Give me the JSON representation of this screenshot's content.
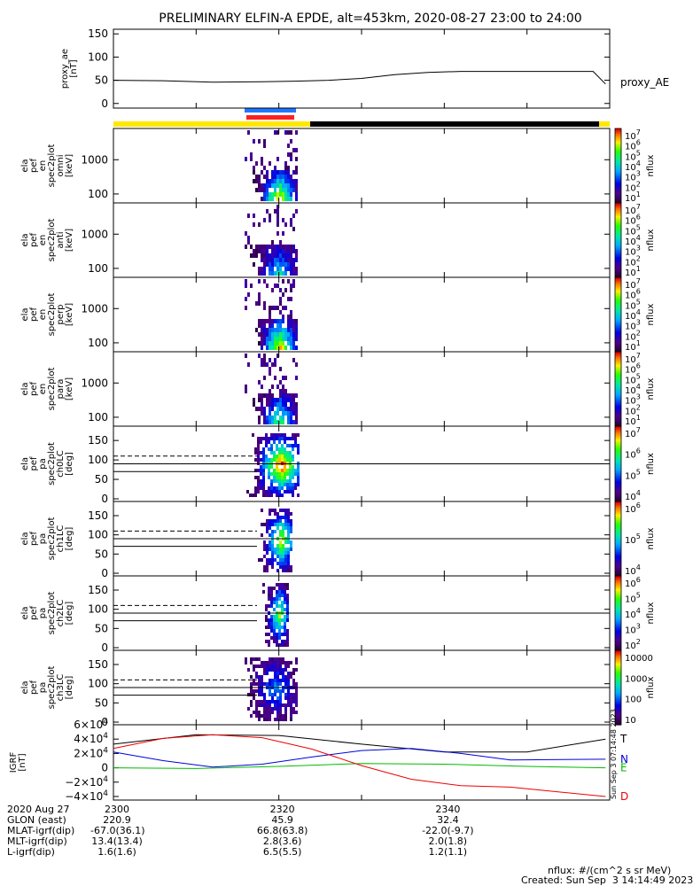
{
  "title": "PRELIMINARY ELFIN-A EPDE, alt=453km, 2020-08-27 23:00 to 24:00",
  "colors": {
    "bar_yellow": "#ffe800",
    "bar_black": "#000000",
    "seg_blue": "#1e78ff",
    "seg_red": "#ff2020"
  },
  "chart_data": [
    {
      "type": "line",
      "panel": "proxy_ae",
      "ylabel": "proxy_ae [nT]",
      "ylim": [
        -10,
        160
      ],
      "yticks": [
        "150",
        "100",
        "50",
        "0"
      ],
      "legend": "proxy_AE",
      "series": [
        {
          "name": "proxy_AE",
          "x": [
            2300,
            2306,
            2312,
            2318,
            2322,
            2326,
            2330,
            2334,
            2338,
            2342,
            2346,
            2350,
            2355,
            2358,
            2359.5
          ],
          "values": [
            50,
            49,
            46,
            47,
            48,
            50,
            54,
            62,
            67,
            69,
            69,
            69,
            69,
            69,
            42
          ]
        }
      ]
    },
    {
      "type": "heatmap",
      "panel": "omni",
      "ylabel": [
        "ela",
        "pef",
        "en",
        "spec2plot",
        "omni",
        "[keV]"
      ],
      "yticks": [
        "1000",
        "100"
      ],
      "colorbar_label": "nflux",
      "colorbar_ticks": [
        "10",
        "10",
        "10",
        "10",
        "10",
        "10",
        "10"
      ],
      "colorbar_exp": [
        "7",
        "6",
        "5",
        "4",
        "3",
        "2",
        "1"
      ]
    },
    {
      "type": "heatmap",
      "panel": "anti",
      "ylabel": [
        "ela",
        "pef",
        "en",
        "spec2plot",
        "anti",
        "[keV]"
      ],
      "yticks": [
        "1000",
        "100"
      ],
      "colorbar_label": "nflux",
      "colorbar_ticks": [
        "10",
        "10",
        "10",
        "10",
        "10",
        "10",
        "10"
      ],
      "colorbar_exp": [
        "7",
        "6",
        "5",
        "4",
        "3",
        "2",
        "1"
      ]
    },
    {
      "type": "heatmap",
      "panel": "perp",
      "ylabel": [
        "ela",
        "pef",
        "en",
        "spec2plot",
        "perp",
        "[keV]"
      ],
      "yticks": [
        "1000",
        "100"
      ],
      "colorbar_label": "nflux",
      "colorbar_ticks": [
        "10",
        "10",
        "10",
        "10",
        "10",
        "10",
        "10"
      ],
      "colorbar_exp": [
        "7",
        "6",
        "5",
        "4",
        "3",
        "2",
        "1"
      ]
    },
    {
      "type": "heatmap",
      "panel": "para",
      "ylabel": [
        "ela",
        "pef",
        "en",
        "spec2plot",
        "para",
        "[keV]"
      ],
      "yticks": [
        "1000",
        "100"
      ],
      "colorbar_label": "nflux",
      "colorbar_ticks": [
        "10",
        "10",
        "10",
        "10",
        "10",
        "10",
        "10"
      ],
      "colorbar_exp": [
        "7",
        "6",
        "5",
        "4",
        "3",
        "2",
        "1"
      ]
    },
    {
      "type": "heatmap",
      "panel": "ch0LC",
      "ylabel": [
        "ela",
        "pef",
        "pa",
        "spec2plot",
        "ch0LC",
        "[deg]"
      ],
      "yticks": [
        "150",
        "100",
        "50",
        "0"
      ],
      "colorbar_label": "nflux",
      "colorbar_ticks": [
        "10",
        "10",
        "10",
        "10"
      ],
      "colorbar_exp": [
        "7",
        "6",
        "5",
        "4"
      ]
    },
    {
      "type": "heatmap",
      "panel": "ch1LC",
      "ylabel": [
        "ela",
        "pef",
        "pa",
        "spec2plot",
        "ch1LC",
        "[deg]"
      ],
      "yticks": [
        "150",
        "100",
        "50",
        "0"
      ],
      "colorbar_label": "nflux",
      "colorbar_ticks": [
        "10",
        "10",
        "10"
      ],
      "colorbar_exp": [
        "6",
        "5",
        "4"
      ]
    },
    {
      "type": "heatmap",
      "panel": "ch2LC",
      "ylabel": [
        "ela",
        "pef",
        "pa",
        "spec2plot",
        "ch2LC",
        "[deg]"
      ],
      "yticks": [
        "150",
        "100",
        "50",
        "0"
      ],
      "colorbar_label": "nflux",
      "colorbar_ticks": [
        "10",
        "10",
        "10",
        "10",
        "10"
      ],
      "colorbar_exp": [
        "6",
        "5",
        "4",
        "3",
        "2"
      ]
    },
    {
      "type": "heatmap",
      "panel": "ch3LC",
      "ylabel": [
        "ela",
        "pef",
        "pa",
        "spec2plot",
        "ch3LC",
        "[deg]"
      ],
      "yticks": [
        "150",
        "100",
        "50",
        "0"
      ],
      "colorbar_label": "nflux",
      "colorbar_ticks": [
        "10000",
        "1000",
        "100",
        "10"
      ]
    },
    {
      "type": "line",
      "panel": "IGRF",
      "ylabel": [
        "IGRF",
        "[nT]"
      ],
      "ylim": [
        -45000,
        60000
      ],
      "ytick_values": [
        60000,
        40000,
        20000,
        0,
        -20000,
        -40000
      ],
      "yticks": [
        {
          "m": "6",
          "e": "4",
          "sign": ""
        },
        {
          "m": "4",
          "e": "4",
          "sign": ""
        },
        {
          "m": "2",
          "e": "4",
          "sign": ""
        },
        {
          "m": "0",
          "e": "",
          "sign": ""
        },
        {
          "m": "2",
          "e": "4",
          "sign": "−"
        },
        {
          "m": "4",
          "e": "4",
          "sign": "−"
        }
      ],
      "series": [
        {
          "name": "T",
          "color": "#000000",
          "x": [
            2300,
            2310,
            2320,
            2330,
            2340,
            2350,
            2359.5
          ],
          "values": [
            33000,
            46000,
            45000,
            33000,
            22000,
            22000,
            40000
          ]
        },
        {
          "name": "N",
          "color": "#0000dd",
          "x": [
            2300,
            2306,
            2312,
            2318,
            2324,
            2330,
            2336,
            2342,
            2348,
            2359.5
          ],
          "values": [
            22000,
            10000,
            1000,
            5000,
            15000,
            24000,
            27000,
            20000,
            11000,
            12000
          ]
        },
        {
          "name": "E",
          "color": "#00bb00",
          "x": [
            2300,
            2310,
            2320,
            2330,
            2340,
            2350,
            2359.5
          ],
          "values": [
            0,
            -1000,
            2000,
            6000,
            5000,
            2000,
            0
          ]
        },
        {
          "name": "D",
          "color": "#ee0000",
          "x": [
            2300,
            2306,
            2312,
            2318,
            2324,
            2330,
            2336,
            2342,
            2348,
            2359.5
          ],
          "values": [
            27000,
            41000,
            46000,
            42000,
            26000,
            3000,
            -16000,
            -25000,
            -27000,
            -40000
          ]
        }
      ]
    }
  ],
  "orbit": {
    "rows": [
      {
        "label": "2020 Aug 27",
        "values": [
          "2300",
          "2320",
          "2340"
        ]
      },
      {
        "label": "GLON (east)",
        "values": [
          "220.9",
          "45.9",
          "32.4"
        ]
      },
      {
        "label": "MLAT-igrf(dip)",
        "values": [
          "-67.0(36.1)",
          "66.8(63.8)",
          "-22.0(-9.7)"
        ]
      },
      {
        "label": "MLT-igrf(dip)",
        "values": [
          "13.4(13.4)",
          "2.8(3.6)",
          "2.0(1.8)"
        ]
      },
      {
        "label": "L-igrf(dip)",
        "values": [
          "1.6(1.6)",
          "6.5(5.5)",
          "1.2(1.1)"
        ]
      }
    ]
  },
  "footer": {
    "units": "nflux: #/(cm^2 s sr MeV)",
    "created": "Created: Sun Sep  3 14:14:49 2023",
    "side_stamp": "Sun Sep  3 07:14:48 2023"
  }
}
